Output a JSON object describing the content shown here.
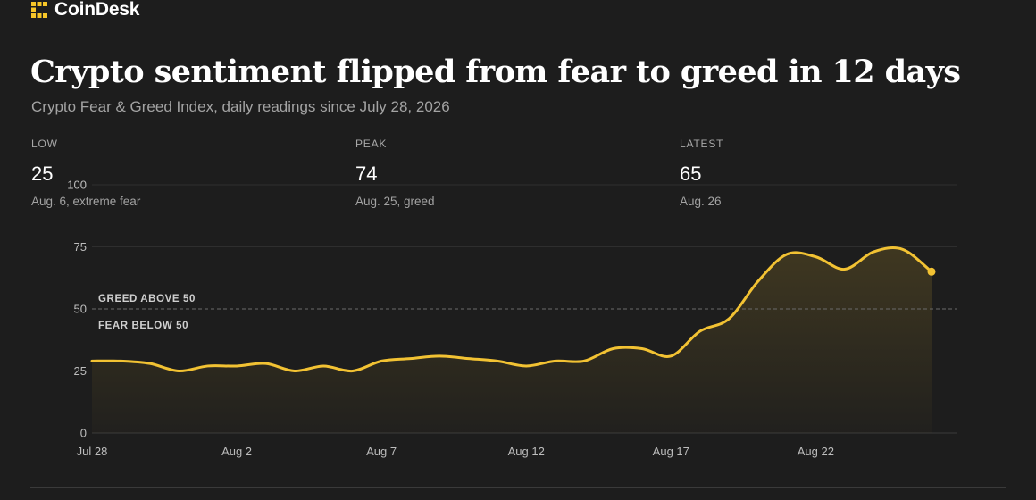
{
  "brand": {
    "name": "CoinDesk",
    "accent": "#f7c628"
  },
  "header": {
    "title": "Crypto sentiment flipped from fear to greed in 12 days",
    "subtitle": "Crypto Fear & Greed Index, daily readings since July 28, 2026"
  },
  "stats": [
    {
      "label": "LOW",
      "value": "25",
      "note": "Aug. 6, extreme fear"
    },
    {
      "label": "PEAK",
      "value": "74",
      "note": "Aug. 25, greed"
    },
    {
      "label": "LATEST",
      "value": "65",
      "note": "Aug. 26"
    }
  ],
  "colors": {
    "background": "#1d1d1d",
    "line": "#f2c233",
    "grid": "#333333",
    "threshold": "#6a6a6a"
  },
  "chart_data": {
    "type": "area",
    "x": [
      "Jul 28",
      "Jul 29",
      "Jul 30",
      "Jul 31",
      "Aug 1",
      "Aug 2",
      "Aug 3",
      "Aug 4",
      "Aug 5",
      "Aug 6",
      "Aug 7",
      "Aug 8",
      "Aug 9",
      "Aug 10",
      "Aug 11",
      "Aug 12",
      "Aug 13",
      "Aug 14",
      "Aug 15",
      "Aug 16",
      "Aug 17",
      "Aug 18",
      "Aug 19",
      "Aug 20",
      "Aug 21",
      "Aug 22",
      "Aug 23",
      "Aug 24",
      "Aug 25",
      "Aug 26"
    ],
    "values": [
      29,
      29,
      28,
      25,
      27,
      27,
      28,
      25,
      27,
      25,
      29,
      30,
      31,
      30,
      29,
      27,
      29,
      29,
      34,
      34,
      31,
      41,
      46,
      61,
      72,
      71,
      66,
      73,
      74,
      65
    ],
    "xticks": [
      "Jul 28",
      "Aug 2",
      "Aug 7",
      "Aug 12",
      "Aug 17",
      "Aug 22"
    ],
    "yticks": [
      0,
      25,
      50,
      75,
      100
    ],
    "ylim": [
      0,
      100
    ],
    "threshold": {
      "value": 50,
      "above_label": "GREED ABOVE 50",
      "below_label": "FEAR BELOW 50"
    },
    "grid": true,
    "end_marker": true
  }
}
